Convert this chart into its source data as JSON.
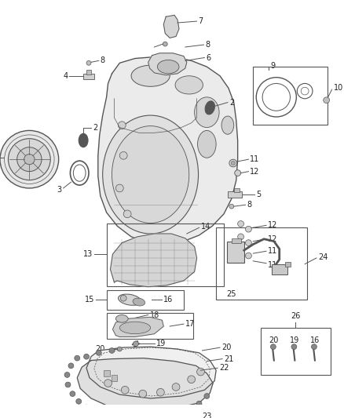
{
  "bg_color": "#ffffff",
  "lc": "#555555",
  "tc": "#222222",
  "fs": 7.0,
  "figw": 4.38,
  "figh": 5.33,
  "dpi": 100
}
